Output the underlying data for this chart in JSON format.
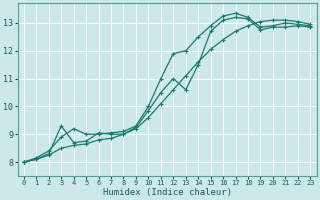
{
  "xlabel": "Humidex (Indice chaleur)",
  "bg_color": "#cce8e8",
  "grid_color": "#ffffff",
  "line_color": "#1a7a6e",
  "xlim": [
    -0.5,
    23.5
  ],
  "ylim": [
    7.5,
    13.7
  ],
  "xticks": [
    0,
    1,
    2,
    3,
    4,
    5,
    6,
    7,
    8,
    9,
    10,
    11,
    12,
    13,
    14,
    15,
    16,
    17,
    18,
    19,
    20,
    21,
    22,
    23
  ],
  "yticks": [
    8,
    9,
    10,
    11,
    12,
    13
  ],
  "line1_x": [
    0,
    1,
    2,
    3,
    4,
    5,
    6,
    7,
    8,
    9,
    10,
    11,
    12,
    13,
    14,
    15,
    16,
    17,
    18,
    19,
    20,
    21,
    22,
    23
  ],
  "line1_y": [
    8.0,
    8.1,
    8.25,
    8.5,
    8.6,
    8.65,
    8.8,
    8.85,
    9.0,
    9.2,
    9.6,
    10.1,
    10.6,
    11.1,
    11.6,
    12.05,
    12.4,
    12.7,
    12.9,
    13.05,
    13.1,
    13.1,
    13.05,
    12.95
  ],
  "line2_x": [
    0,
    1,
    2,
    3,
    4,
    5,
    6,
    7,
    8,
    9,
    10,
    11,
    12,
    13,
    14,
    15,
    16,
    17,
    18,
    19,
    20,
    21,
    22,
    23
  ],
  "line2_y": [
    8.0,
    8.15,
    8.4,
    8.9,
    9.2,
    9.0,
    9.0,
    9.05,
    9.1,
    9.3,
    10.0,
    11.0,
    11.9,
    12.0,
    12.5,
    12.9,
    13.25,
    13.35,
    13.2,
    12.85,
    12.9,
    13.0,
    12.95,
    12.9
  ],
  "line3_x": [
    0,
    1,
    2,
    3,
    4,
    5,
    6,
    7,
    8,
    9,
    10,
    11,
    12,
    13,
    14,
    15,
    16,
    17,
    18,
    19,
    20,
    21,
    22,
    23
  ],
  "line3_y": [
    8.0,
    8.1,
    8.3,
    9.3,
    8.7,
    8.75,
    9.05,
    9.0,
    9.0,
    9.25,
    9.85,
    10.5,
    11.0,
    10.6,
    11.5,
    12.7,
    13.1,
    13.2,
    13.15,
    12.75,
    12.85,
    12.85,
    12.9,
    12.85
  ]
}
